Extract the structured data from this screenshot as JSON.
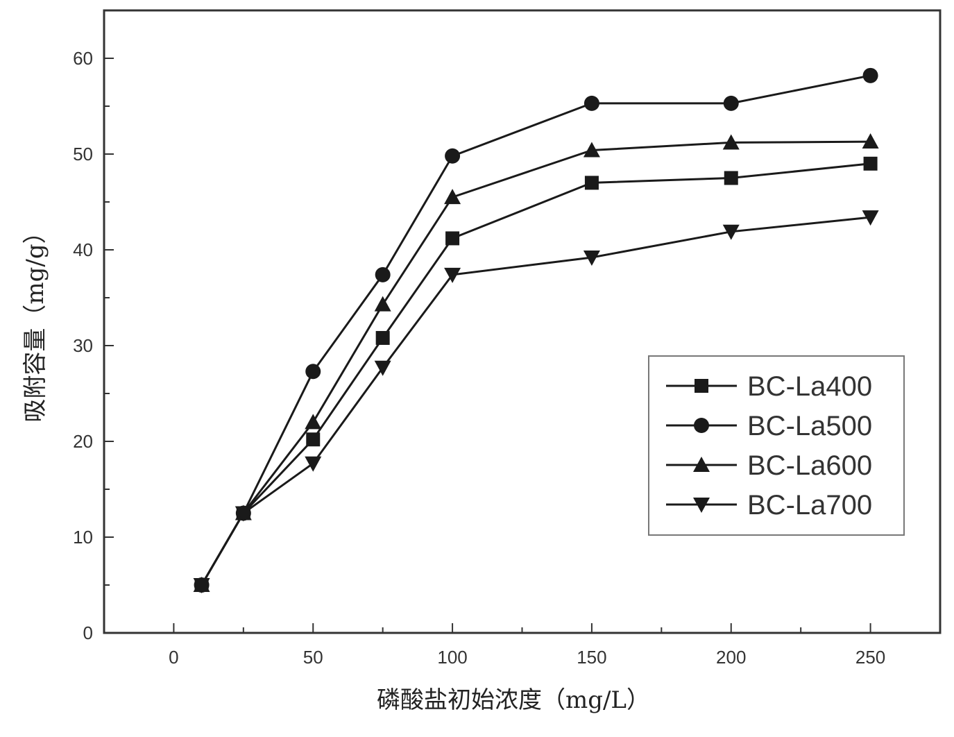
{
  "chart_data": {
    "type": "line",
    "xlabel": "磷酸盐初始浓度（mg/L）",
    "ylabel": "吸附容量（mg/g）",
    "xlim": [
      -25,
      275
    ],
    "ylim": [
      0,
      65
    ],
    "x_ticks": [
      0,
      50,
      100,
      150,
      200,
      250
    ],
    "y_ticks": [
      0,
      10,
      20,
      30,
      40,
      50,
      60
    ],
    "x_tick_labels": [
      "0",
      "50",
      "100",
      "150",
      "200",
      "250"
    ],
    "y_tick_labels": [
      "0",
      "10",
      "20",
      "30",
      "40",
      "50",
      "60"
    ],
    "grid": false,
    "legend_position": "center-right",
    "x": [
      10,
      25,
      50,
      75,
      100,
      150,
      200,
      250
    ],
    "series": [
      {
        "name": "BC-La400",
        "marker": "square",
        "values": [
          5,
          12.5,
          20.2,
          30.8,
          41.2,
          47.0,
          47.5,
          49.0
        ]
      },
      {
        "name": "BC-La500",
        "marker": "circle",
        "values": [
          5,
          12.5,
          27.3,
          37.4,
          49.8,
          55.3,
          55.3,
          58.2
        ]
      },
      {
        "name": "BC-La600",
        "marker": "triangle-up",
        "values": [
          5,
          12.5,
          22.0,
          34.3,
          45.5,
          50.4,
          51.2,
          51.3
        ]
      },
      {
        "name": "BC-La700",
        "marker": "triangle-down",
        "values": [
          5,
          12.5,
          17.7,
          27.7,
          37.4,
          39.2,
          41.9,
          43.4
        ]
      }
    ],
    "line_color": "#1a1a1a"
  }
}
